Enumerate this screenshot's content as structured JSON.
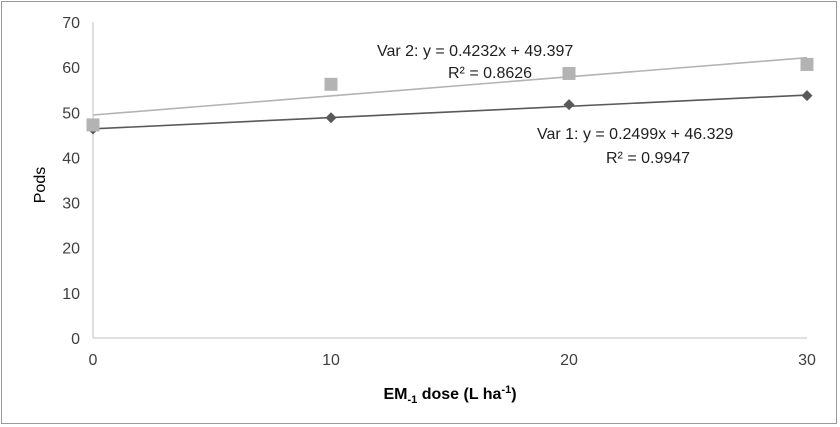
{
  "chart_data": {
    "type": "scatter",
    "xlabel": {
      "main": "EM",
      "sub": "-1",
      "rest": " dose (L ha",
      "sup": "-1",
      "end": ")"
    },
    "ylabel": "Pods",
    "xlim": [
      0,
      30
    ],
    "ylim": [
      0,
      70
    ],
    "xticks": [
      "0",
      "10",
      "20",
      "30"
    ],
    "yticks": [
      "0",
      "10",
      "20",
      "30",
      "40",
      "50",
      "60",
      "70"
    ],
    "grid": false,
    "series": [
      {
        "name": "Var 1",
        "marker": "diamond",
        "color": "#595959",
        "x": [
          0,
          10,
          20,
          30
        ],
        "y": [
          46.3,
          48.8,
          51.7,
          53.7
        ],
        "trendline": {
          "slope": 0.2499,
          "intercept": 46.329
        },
        "equation": "Var 1: y = 0.2499x + 46.329",
        "r2": "R² = 0.9947"
      },
      {
        "name": "Var 2",
        "marker": "square",
        "color": "#b3b3b3",
        "x": [
          0,
          10,
          20,
          30
        ],
        "y": [
          47.2,
          56.2,
          58.6,
          60.6
        ],
        "trendline": {
          "slope": 0.4232,
          "intercept": 49.397
        },
        "equation": "Var 2: y = 0.4232x + 49.397",
        "r2": "R² = 0.8626"
      }
    ]
  }
}
